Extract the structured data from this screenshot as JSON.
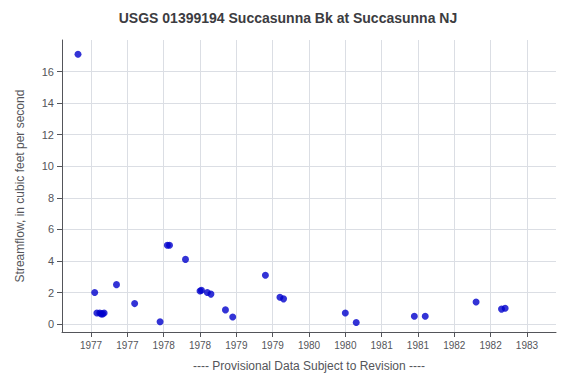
{
  "chart_data": {
    "type": "scatter",
    "title": "USGS 01399194 Succasunna Bk at Succasunna NJ",
    "ylabel": "Streamflow, in cubic feet per second",
    "xlabel": "---- Provisional Data Subject to Revision ----",
    "x": [
      1976.82,
      1977.05,
      1977.08,
      1977.12,
      1977.14,
      1977.16,
      1977.18,
      1977.35,
      1977.6,
      1977.95,
      1978.05,
      1978.08,
      1978.3,
      1978.5,
      1978.52,
      1978.6,
      1978.65,
      1978.85,
      1978.95,
      1979.4,
      1979.6,
      1979.65,
      1980.5,
      1980.65,
      1981.45,
      1981.6,
      1982.3,
      1982.65,
      1982.7
    ],
    "values": [
      17.1,
      2.0,
      0.7,
      0.7,
      0.65,
      0.65,
      0.7,
      2.5,
      1.3,
      0.15,
      5.0,
      5.0,
      4.1,
      2.1,
      2.15,
      2.0,
      1.9,
      0.9,
      0.45,
      3.1,
      1.7,
      1.6,
      0.7,
      0.1,
      0.5,
      0.5,
      1.4,
      0.95,
      1.0
    ],
    "xlim": [
      1976.6,
      1983.4
    ],
    "xticks": [
      1977,
      {
        "value": 1977.5,
        "label": "1977"
      },
      1978,
      {
        "value": 1978.5,
        "label": "1978"
      },
      1979,
      {
        "value": 1979.5,
        "label": "1979"
      },
      1980,
      {
        "value": 1980.5,
        "label": "1980"
      },
      1981,
      {
        "value": 1981.5,
        "label": "1981"
      },
      1982,
      {
        "value": 1982.5,
        "label": "1982"
      },
      1983
    ],
    "ylim": [
      -0.5,
      18.0
    ],
    "yticks": [
      0,
      2,
      4,
      6,
      8,
      10,
      12,
      14,
      16
    ],
    "color": "#0000CC",
    "marker": "circle",
    "grid": true
  }
}
